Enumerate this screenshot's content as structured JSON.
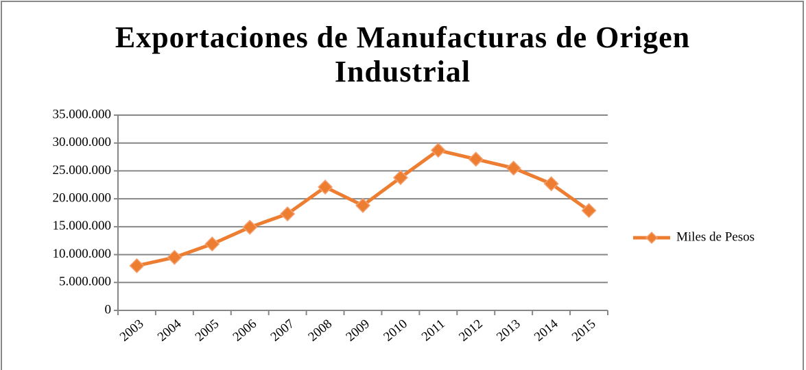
{
  "chart_data": {
    "type": "line",
    "title": "Exportaciones de Manufacturas de Origen Industrial",
    "categories": [
      "2003",
      "2004",
      "2005",
      "2006",
      "2007",
      "2008",
      "2009",
      "2010",
      "2011",
      "2012",
      "2013",
      "2014",
      "2015"
    ],
    "series": [
      {
        "name": "Miles de Pesos",
        "color": "#ed7d31",
        "values": [
          8000000,
          9500000,
          11900000,
          14900000,
          17300000,
          22100000,
          18800000,
          23800000,
          28700000,
          27100000,
          25500000,
          22700000,
          17900000
        ]
      }
    ],
    "ylim": [
      0,
      35000000
    ],
    "yticks": [
      0,
      {
        "value": 5000000,
        "label": "5.000.000"
      },
      {
        "value": 10000000,
        "label": "10.000.000"
      },
      {
        "value": 15000000,
        "label": "15.000.000"
      },
      {
        "value": 20000000,
        "label": "20.000.000"
      },
      {
        "value": 25000000,
        "label": "25.000.000"
      },
      {
        "value": 30000000,
        "label": "30.000.000"
      },
      {
        "value": 35000000,
        "label": "35.000.000"
      }
    ],
    "grid": true,
    "legend": "right"
  }
}
